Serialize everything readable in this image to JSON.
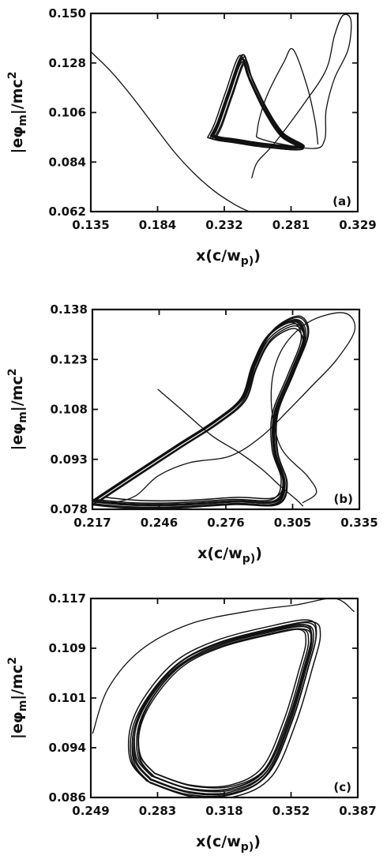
{
  "chart_data": [
    {
      "type": "line",
      "panel_label": "(a)",
      "xlabel": "x(c/w_p)",
      "ylabel": "|eφ_m|/mc^2",
      "xlim": [
        0.135,
        0.329
      ],
      "ylim": [
        0.062,
        0.15
      ],
      "x_ticks": [
        "0.135",
        "0.184",
        "0.232",
        "0.281",
        "0.329"
      ],
      "y_ticks": [
        "0.062",
        "0.084",
        "0.106",
        "0.128",
        "0.150"
      ],
      "series": [
        {
          "style": "transient",
          "points": [
            [
              0.135,
              0.133
            ],
            [
              0.15,
              0.124
            ],
            [
              0.165,
              0.113
            ],
            [
              0.18,
              0.101
            ],
            [
              0.195,
              0.089
            ],
            [
              0.21,
              0.079
            ],
            [
              0.225,
              0.071
            ],
            [
              0.24,
              0.065
            ],
            [
              0.25,
              0.062
            ]
          ]
        },
        {
          "style": "transient",
          "points": [
            [
              0.252,
              0.077
            ],
            [
              0.256,
              0.084
            ],
            [
              0.268,
              0.092
            ],
            [
              0.29,
              0.11
            ],
            [
              0.306,
              0.125
            ],
            [
              0.312,
              0.14
            ],
            [
              0.318,
              0.149
            ],
            [
              0.324,
              0.147
            ],
            [
              0.322,
              0.134
            ],
            [
              0.312,
              0.121
            ],
            [
              0.306,
              0.107
            ],
            [
              0.305,
              0.094
            ],
            [
              0.296,
              0.09
            ],
            [
              0.26,
              0.094
            ],
            [
              0.256,
              0.098
            ],
            [
              0.262,
              0.112
            ],
            [
              0.275,
              0.128
            ],
            [
              0.282,
              0.134
            ],
            [
              0.292,
              0.118
            ],
            [
              0.298,
              0.102
            ],
            [
              0.3,
              0.092
            ]
          ]
        },
        {
          "style": "attractor",
          "points": [
            [
              0.222,
              0.095
            ],
            [
              0.227,
              0.101
            ],
            [
              0.235,
              0.115
            ],
            [
              0.245,
              0.131
            ],
            [
              0.251,
              0.122
            ],
            [
              0.262,
              0.108
            ],
            [
              0.275,
              0.096
            ],
            [
              0.29,
              0.09
            ],
            [
              0.262,
              0.091
            ],
            [
              0.24,
              0.093
            ],
            [
              0.228,
              0.094
            ],
            [
              0.222,
              0.095
            ]
          ]
        }
      ]
    },
    {
      "type": "line",
      "panel_label": "(b)",
      "xlabel": "x(c/w_p)",
      "ylabel": "|eφ_m|/mc^2",
      "xlim": [
        0.217,
        0.335
      ],
      "ylim": [
        0.078,
        0.138
      ],
      "x_ticks": [
        "0.217",
        "0.246",
        "0.276",
        "0.305",
        "0.335"
      ],
      "y_ticks": [
        "0.078",
        "0.093",
        "0.108",
        "0.123",
        "0.138"
      ],
      "series": [
        {
          "style": "transient",
          "points": [
            [
              0.246,
              0.114
            ],
            [
              0.258,
              0.107
            ],
            [
              0.27,
              0.1
            ],
            [
              0.282,
              0.095
            ],
            [
              0.292,
              0.09
            ],
            [
              0.3,
              0.085
            ],
            [
              0.307,
              0.081
            ],
            [
              0.31,
              0.079
            ]
          ]
        },
        {
          "style": "transient",
          "points": [
            [
              0.31,
              0.08
            ],
            [
              0.316,
              0.083
            ],
            [
              0.312,
              0.088
            ],
            [
              0.3,
              0.097
            ],
            [
              0.296,
              0.112
            ],
            [
              0.3,
              0.125
            ],
            [
              0.312,
              0.134
            ],
            [
              0.328,
              0.137
            ],
            [
              0.333,
              0.132
            ],
            [
              0.325,
              0.123
            ],
            [
              0.314,
              0.115
            ],
            [
              0.304,
              0.108
            ],
            [
              0.292,
              0.1
            ],
            [
              0.278,
              0.094
            ],
            [
              0.26,
              0.092
            ],
            [
              0.246,
              0.088
            ],
            [
              0.236,
              0.082
            ],
            [
              0.225,
              0.08
            ],
            [
              0.217,
              0.081
            ]
          ]
        },
        {
          "style": "attractor",
          "points": [
            [
              0.218,
              0.08
            ],
            [
              0.238,
              0.089
            ],
            [
              0.256,
              0.097
            ],
            [
              0.272,
              0.104
            ],
            [
              0.284,
              0.111
            ],
            [
              0.289,
              0.121
            ],
            [
              0.296,
              0.13
            ],
            [
              0.307,
              0.134
            ],
            [
              0.311,
              0.129
            ],
            [
              0.305,
              0.118
            ],
            [
              0.298,
              0.106
            ],
            [
              0.298,
              0.095
            ],
            [
              0.302,
              0.086
            ],
            [
              0.298,
              0.08
            ],
            [
              0.28,
              0.08
            ],
            [
              0.255,
              0.079
            ],
            [
              0.235,
              0.079
            ],
            [
              0.218,
              0.08
            ]
          ]
        }
      ]
    },
    {
      "type": "line",
      "panel_label": "(c)",
      "xlabel": "x(c/w_p)",
      "ylabel": "|eφ_m|/mc^2",
      "xlim": [
        0.249,
        0.387
      ],
      "ylim": [
        0.086,
        0.117
      ],
      "x_ticks": [
        "0.249",
        "0.283",
        "0.318",
        "0.352",
        "0.387"
      ],
      "y_ticks": [
        "0.086",
        "0.094",
        "0.101",
        "0.109",
        "0.117"
      ],
      "series": [
        {
          "style": "transient",
          "points": [
            [
              0.25,
              0.096
            ],
            [
              0.258,
              0.103
            ],
            [
              0.275,
              0.109
            ],
            [
              0.3,
              0.113
            ],
            [
              0.33,
              0.115
            ],
            [
              0.355,
              0.116
            ],
            [
              0.375,
              0.117
            ],
            [
              0.385,
              0.115
            ]
          ]
        },
        {
          "style": "attractor",
          "points": [
            [
              0.28,
              0.089
            ],
            [
              0.3,
              0.087
            ],
            [
              0.322,
              0.087
            ],
            [
              0.34,
              0.09
            ],
            [
              0.352,
              0.098
            ],
            [
              0.36,
              0.106
            ],
            [
              0.364,
              0.111
            ],
            [
              0.36,
              0.113
            ],
            [
              0.34,
              0.112
            ],
            [
              0.315,
              0.11
            ],
            [
              0.295,
              0.107
            ],
            [
              0.28,
              0.102
            ],
            [
              0.272,
              0.097
            ],
            [
              0.272,
              0.092
            ],
            [
              0.28,
              0.089
            ]
          ]
        }
      ]
    }
  ]
}
